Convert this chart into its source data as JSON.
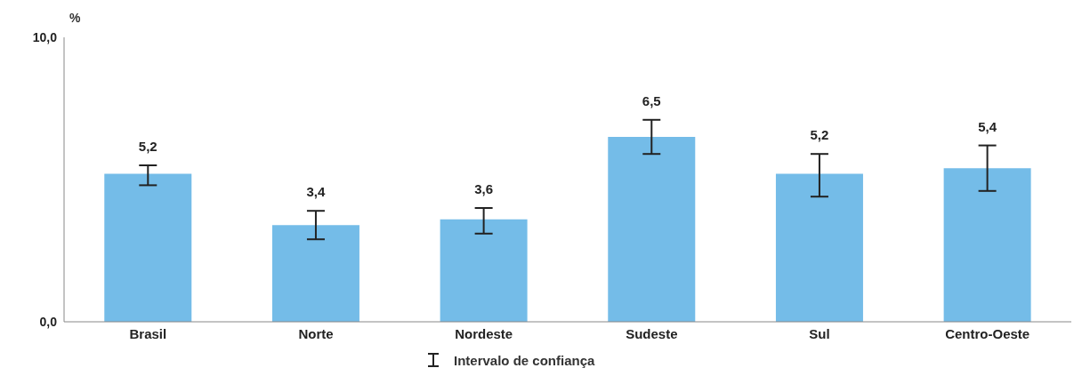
{
  "chart_data": {
    "type": "bar",
    "ylabel": "%",
    "categories": [
      "Brasil",
      "Norte",
      "Nordeste",
      "Sudeste",
      "Sul",
      "Centro-Oeste"
    ],
    "values": [
      5.2,
      3.4,
      3.6,
      6.5,
      5.2,
      5.4
    ],
    "value_labels": [
      "5,2",
      "3,4",
      "3,6",
      "6,5",
      "5,2",
      "5,4"
    ],
    "errors": [
      [
        4.8,
        5.5
      ],
      [
        2.9,
        3.9
      ],
      [
        3.1,
        4.0
      ],
      [
        5.9,
        7.1
      ],
      [
        4.4,
        5.9
      ],
      [
        4.6,
        6.2
      ]
    ],
    "color": "#74bce8",
    "ylim": [
      0,
      10
    ],
    "yticks": [
      {
        "value": 0,
        "label": "0,0"
      },
      {
        "value": 10,
        "label": "10,0"
      }
    ],
    "annotations": [
      "Intervalo de confiança"
    ]
  }
}
